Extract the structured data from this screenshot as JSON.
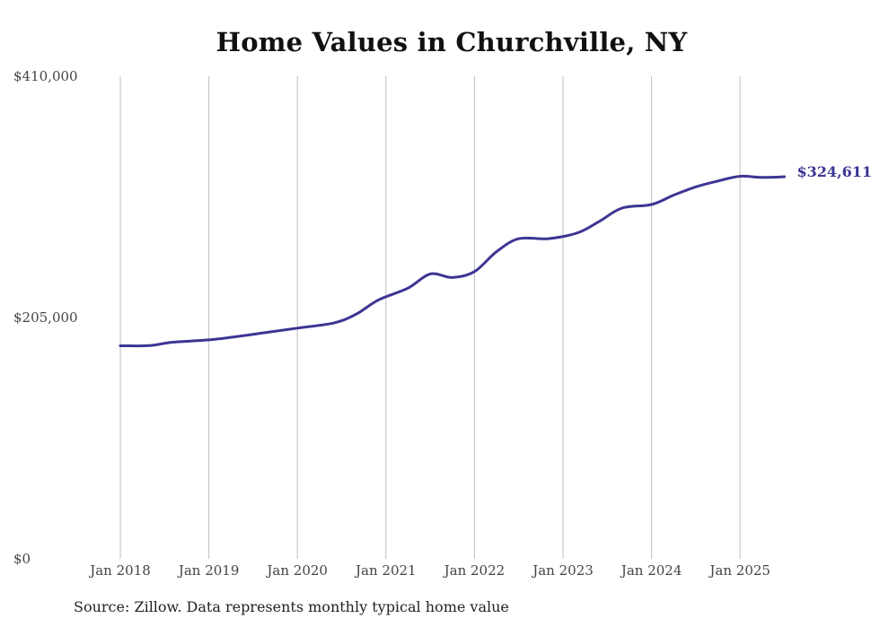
{
  "chart_data": {
    "type": "line",
    "title": "Home Values in Churchville, NY",
    "source": "Source: Zillow. Data represents monthly typical home value",
    "ylim": [
      0,
      410000
    ],
    "y_ticks": [
      0,
      205000,
      410000
    ],
    "y_tick_labels": [
      "$0",
      "$205,000",
      "$410,000"
    ],
    "x_ticks": [
      "2018-01",
      "2019-01",
      "2020-01",
      "2021-01",
      "2022-01",
      "2023-01",
      "2024-01",
      "2025-01"
    ],
    "x_tick_labels": [
      "Jan 2018",
      "Jan 2019",
      "Jan 2020",
      "Jan 2021",
      "Jan 2022",
      "Jan 2023",
      "Jan 2024",
      "Jan 2025"
    ],
    "grid": {
      "vertical": true,
      "horizontal": false
    },
    "end_label": "$324,611",
    "line_color": "#3d3593",
    "series": [
      {
        "points": [
          [
            "2018-01",
            181000
          ],
          [
            "2018-05",
            181200
          ],
          [
            "2018-08",
            184000
          ],
          [
            "2019-01",
            186000
          ],
          [
            "2019-05",
            189000
          ],
          [
            "2019-09",
            192500
          ],
          [
            "2020-01",
            196000
          ],
          [
            "2020-06",
            200500
          ],
          [
            "2020-09",
            208000
          ],
          [
            "2020-12",
            220000
          ],
          [
            "2021-04",
            230000
          ],
          [
            "2021-07",
            242000
          ],
          [
            "2021-10",
            239000
          ],
          [
            "2022-01",
            244000
          ],
          [
            "2022-04",
            261000
          ],
          [
            "2022-07",
            272000
          ],
          [
            "2022-11",
            272000
          ],
          [
            "2023-03",
            277000
          ],
          [
            "2023-06",
            287000
          ],
          [
            "2023-09",
            298000
          ],
          [
            "2024-01",
            301000
          ],
          [
            "2024-04",
            309000
          ],
          [
            "2024-07",
            316000
          ],
          [
            "2024-10",
            321000
          ],
          [
            "2025-01",
            325000
          ],
          [
            "2025-04",
            324000
          ],
          [
            "2025-07",
            324611
          ]
        ]
      }
    ]
  }
}
